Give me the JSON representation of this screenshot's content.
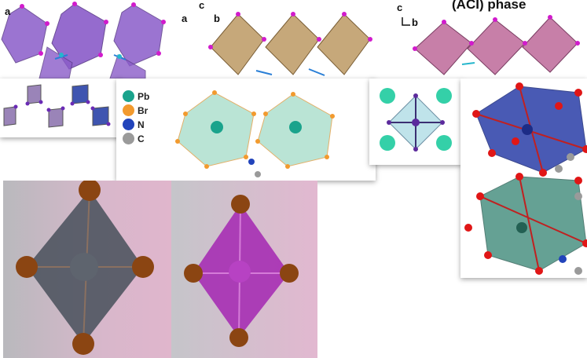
{
  "top_left_panel": {
    "axis_a": "a"
  },
  "top_middle_panel": {
    "axis_a": "a",
    "axis_b": "b",
    "axis_c": "c"
  },
  "top_right_panel": {
    "axis_c": "c",
    "axis_b": "b",
    "phase_label": "(ACI) phase"
  },
  "legend": {
    "items": [
      {
        "symbol": "Pb",
        "color": "#1aa38c"
      },
      {
        "symbol": "Br",
        "color": "#f29a2e"
      },
      {
        "symbol": "N",
        "color": "#2244bb"
      },
      {
        "symbol": "C",
        "color": "#9a9a9a"
      }
    ]
  },
  "colors": {
    "purple": "#8a5cc9",
    "tan": "#c6a87a",
    "pink": "#c77fa8",
    "mint": "#9ed9c4",
    "blue": "#2a3ea8",
    "green": "#3f8a7a",
    "grey_octa": "#4f5560",
    "magenta": "#a62fb4",
    "bromine": "#8b4512"
  }
}
